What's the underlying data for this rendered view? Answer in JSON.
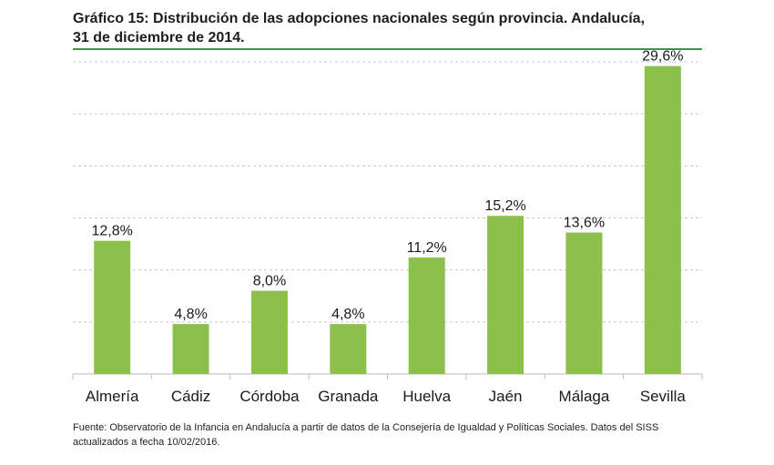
{
  "header": {
    "title_line1": "Gráfico 15: Distribución de las adopciones nacionales según provincia. Andalucía,",
    "title_line2": "31 de diciembre de 2014."
  },
  "colors": {
    "bar": "#8bc04d",
    "title_rule": "#2e9a4a",
    "grid": "#c8c8c8",
    "axis": "#bdbdbd",
    "text": "#1a1a1a"
  },
  "chart_data": {
    "type": "bar",
    "title": "",
    "xlabel": "",
    "ylabel": "",
    "categories": [
      "Almería",
      "Cádiz",
      "Córdoba",
      "Granada",
      "Huelva",
      "Jaén",
      "Málaga",
      "Sevilla"
    ],
    "values": [
      12.8,
      4.8,
      8.0,
      4.8,
      11.2,
      15.2,
      13.6,
      29.6
    ],
    "value_labels": [
      "12,8%",
      "4,8%",
      "8,0%",
      "4,8%",
      "11,2%",
      "15,2%",
      "13,6%",
      "29,6%"
    ],
    "ylim": [
      0,
      30
    ],
    "grid": true,
    "legend": "none"
  },
  "footer": {
    "source_text": "Fuente: Observatorio de la Infancia en Andalucía a partir de datos de la Consejería de Igualdad y Políticas Sociales. Datos del SISS actualizados a fecha 10/02/2016."
  }
}
